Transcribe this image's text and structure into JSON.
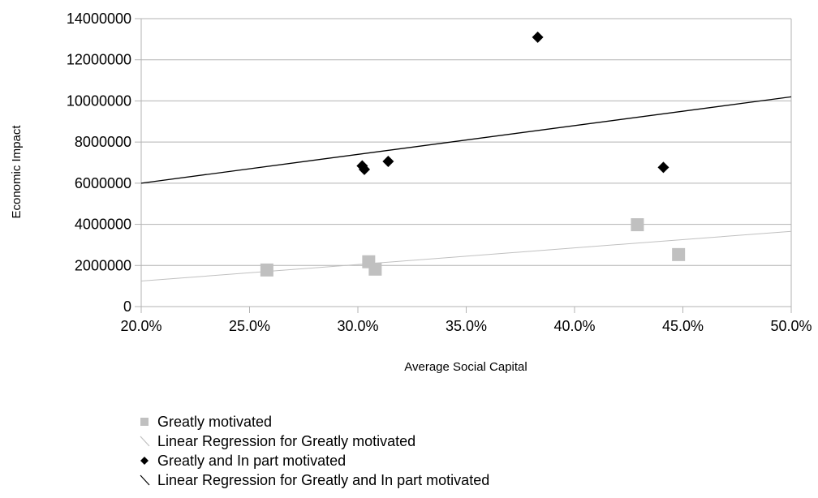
{
  "chart_data": {
    "type": "scatter",
    "title": "",
    "xlabel": "Average Social Capital",
    "ylabel": "Economic Impact",
    "xlim": [
      0.2,
      0.5
    ],
    "ylim": [
      0,
      14000000
    ],
    "x_ticks": [
      0.2,
      0.25,
      0.3,
      0.35,
      0.4,
      0.45,
      0.5
    ],
    "x_tick_labels": [
      "20.0%",
      "25.0%",
      "30.0%",
      "35.0%",
      "40.0%",
      "45.0%",
      "50.0%"
    ],
    "y_ticks": [
      0,
      2000000,
      4000000,
      6000000,
      8000000,
      10000000,
      12000000,
      14000000
    ],
    "y_tick_labels": [
      "0",
      "2000000",
      "4000000",
      "6000000",
      "8000000",
      "10000000",
      "12000000",
      "14000000"
    ],
    "grid": "horizontal",
    "legend_position": "bottom",
    "series": [
      {
        "name": "Greatly motivated",
        "marker": "square",
        "color": "#c0c0c0",
        "points": [
          {
            "x": 0.258,
            "y": 1780000
          },
          {
            "x": 0.305,
            "y": 2180000
          },
          {
            "x": 0.308,
            "y": 1820000
          },
          {
            "x": 0.429,
            "y": 3980000
          },
          {
            "x": 0.448,
            "y": 2530000
          }
        ]
      },
      {
        "name": "Greatly and In part motivated",
        "marker": "diamond",
        "color": "#000000",
        "points": [
          {
            "x": 0.302,
            "y": 6840000
          },
          {
            "x": 0.303,
            "y": 6670000
          },
          {
            "x": 0.314,
            "y": 7060000
          },
          {
            "x": 0.383,
            "y": 13100000
          },
          {
            "x": 0.441,
            "y": 6770000
          }
        ]
      }
    ],
    "trendlines": [
      {
        "name": "Linear Regression for Greatly motivated",
        "color": "#c0c0c0",
        "x": [
          0.2,
          0.5
        ],
        "y": [
          1240000,
          3660000
        ]
      },
      {
        "name": "Linear Regression for Greatly and In part motivated",
        "color": "#000000",
        "x": [
          0.2,
          0.5
        ],
        "y": [
          6000000,
          10200000
        ]
      }
    ],
    "legend": [
      {
        "label": "Greatly motivated",
        "kind": "square",
        "color": "#c0c0c0"
      },
      {
        "label": "Linear Regression for Greatly motivated",
        "kind": "line",
        "color": "#c0c0c0"
      },
      {
        "label": "Greatly and In part motivated",
        "kind": "diamond",
        "color": "#000000"
      },
      {
        "label": "Linear Regression for Greatly and In part motivated",
        "kind": "line",
        "color": "#000000"
      }
    ]
  },
  "colors": {
    "grid": "#b3b3b3",
    "axis": "#b3b3b3",
    "text": "#000000"
  }
}
